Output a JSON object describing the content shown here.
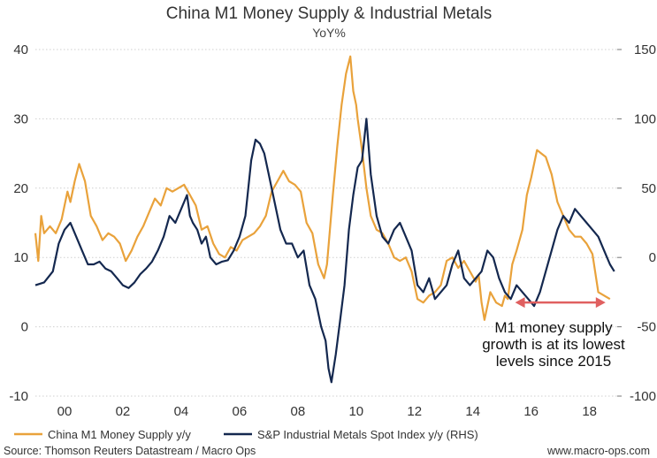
{
  "chart_data": {
    "type": "line",
    "title": "China M1 Money Supply & Industrial Metals",
    "subtitle": "YoY%",
    "x_ticks": [
      "00",
      "02",
      "04",
      "06",
      "08",
      "10",
      "12",
      "14",
      "16",
      "18"
    ],
    "x_tick_years": [
      2000,
      2002,
      2004,
      2006,
      2008,
      2010,
      2012,
      2014,
      2016,
      2018
    ],
    "xlim": [
      1999.0,
      2018.95
    ],
    "left_axis": {
      "ylim": [
        -10,
        40
      ],
      "ticks": [
        "-10",
        "0",
        "10",
        "20",
        "30",
        "40"
      ]
    },
    "right_axis": {
      "ylim": [
        -100,
        150
      ],
      "ticks": [
        "-100",
        "-50",
        "0",
        "50",
        "100",
        "150"
      ]
    },
    "grid": true,
    "legend_position": "bottom",
    "series": [
      {
        "name": "China M1 Money Supply y/y",
        "axis": "left",
        "color": "#E9A23B",
        "x": [
          1999.0,
          1999.1,
          1999.2,
          1999.3,
          1999.5,
          1999.7,
          1999.9,
          2000.1,
          2000.2,
          2000.35,
          2000.5,
          2000.7,
          2000.9,
          2001.1,
          2001.3,
          2001.5,
          2001.7,
          2001.9,
          2002.1,
          2002.3,
          2002.5,
          2002.7,
          2002.9,
          2003.1,
          2003.3,
          2003.5,
          2003.7,
          2003.9,
          2004.1,
          2004.3,
          2004.5,
          2004.7,
          2004.9,
          2005.1,
          2005.3,
          2005.5,
          2005.7,
          2005.9,
          2006.1,
          2006.3,
          2006.5,
          2006.7,
          2006.9,
          2007.1,
          2007.3,
          2007.5,
          2007.7,
          2007.9,
          2008.1,
          2008.3,
          2008.5,
          2008.7,
          2008.9,
          2009.0,
          2009.1,
          2009.2,
          2009.35,
          2009.5,
          2009.65,
          2009.8,
          2009.9,
          2010.0,
          2010.05,
          2010.2,
          2010.35,
          2010.5,
          2010.7,
          2010.9,
          2011.1,
          2011.3,
          2011.5,
          2011.7,
          2011.9,
          2012.1,
          2012.3,
          2012.5,
          2012.7,
          2012.9,
          2013.1,
          2013.3,
          2013.5,
          2013.7,
          2013.9,
          2014.1,
          2014.2,
          2014.3,
          2014.4,
          2014.6,
          2014.8,
          2015.0,
          2015.1,
          2015.2,
          2015.35,
          2015.5,
          2015.7,
          2015.85,
          2016.0,
          2016.1,
          2016.2,
          2016.35,
          2016.5,
          2016.7,
          2016.9,
          2017.1,
          2017.3,
          2017.5,
          2017.7,
          2017.9,
          2018.1,
          2018.3,
          2018.5,
          2018.7
        ],
        "values": [
          13.5,
          9.5,
          16,
          13.5,
          14.5,
          13.5,
          15.5,
          19.5,
          18,
          21,
          23.5,
          21,
          16,
          14.5,
          12.5,
          13.5,
          13,
          12,
          9.5,
          11,
          13,
          14.5,
          16.5,
          18.5,
          17.5,
          20,
          19.5,
          20,
          20.5,
          19,
          17.5,
          14,
          14.5,
          12,
          10.5,
          10,
          11.5,
          11,
          12.5,
          13,
          13.5,
          14.5,
          16,
          19.5,
          21,
          22.5,
          21,
          20.5,
          19.5,
          15,
          13.5,
          9,
          7,
          9,
          14,
          19,
          26,
          32,
          36.5,
          39,
          34,
          32,
          30,
          25.5,
          20,
          16,
          14,
          13.5,
          12,
          10,
          9.5,
          10,
          8,
          4,
          3.5,
          4.5,
          5,
          6,
          9.5,
          10,
          8.5,
          9.5,
          8,
          6.5,
          7.5,
          3.5,
          1,
          5,
          3.5,
          3,
          4.5,
          4,
          9,
          11,
          14,
          19,
          21.5,
          23.5,
          25.5,
          25,
          24.5,
          22,
          18,
          16,
          14,
          13,
          13,
          12,
          10.5,
          5,
          4.5,
          4
        ]
      },
      {
        "name": "S&P Industrial Metals Spot Index y/y (RHS)",
        "axis": "right",
        "color": "#14284F",
        "x": [
          1999.0,
          1999.3,
          1999.6,
          1999.8,
          2000.0,
          2000.2,
          2000.4,
          2000.6,
          2000.8,
          2001.0,
          2001.2,
          2001.4,
          2001.6,
          2001.8,
          2002.0,
          2002.2,
          2002.4,
          2002.6,
          2002.8,
          2003.0,
          2003.2,
          2003.4,
          2003.6,
          2003.8,
          2004.0,
          2004.1,
          2004.2,
          2004.3,
          2004.4,
          2004.55,
          2004.7,
          2004.85,
          2005.0,
          2005.2,
          2005.4,
          2005.6,
          2005.8,
          2006.0,
          2006.2,
          2006.4,
          2006.55,
          2006.7,
          2006.85,
          2007.0,
          2007.2,
          2007.4,
          2007.6,
          2007.8,
          2008.0,
          2008.2,
          2008.4,
          2008.6,
          2008.8,
          2008.95,
          2009.05,
          2009.15,
          2009.3,
          2009.45,
          2009.6,
          2009.75,
          2009.9,
          2010.05,
          2010.2,
          2010.35,
          2010.5,
          2010.7,
          2010.9,
          2011.1,
          2011.3,
          2011.5,
          2011.7,
          2011.9,
          2012.1,
          2012.3,
          2012.5,
          2012.7,
          2012.9,
          2013.1,
          2013.3,
          2013.5,
          2013.7,
          2013.9,
          2014.1,
          2014.3,
          2014.5,
          2014.7,
          2014.9,
          2015.1,
          2015.3,
          2015.5,
          2015.7,
          2015.9,
          2016.1,
          2016.3,
          2016.5,
          2016.7,
          2016.9,
          2017.1,
          2017.3,
          2017.5,
          2017.7,
          2017.9,
          2018.1,
          2018.3,
          2018.5,
          2018.7,
          2018.85
        ],
        "values": [
          -20,
          -18,
          -10,
          10,
          20,
          25,
          15,
          5,
          -5,
          -5,
          -3,
          -8,
          -10,
          -15,
          -20,
          -22,
          -18,
          -12,
          -8,
          -3,
          5,
          15,
          30,
          25,
          35,
          40,
          45,
          30,
          25,
          20,
          10,
          15,
          0,
          -5,
          -3,
          -2,
          5,
          15,
          30,
          70,
          85,
          82,
          75,
          60,
          40,
          20,
          10,
          10,
          0,
          5,
          -20,
          -30,
          -50,
          -60,
          -80,
          -90,
          -70,
          -45,
          -20,
          20,
          45,
          65,
          70,
          100,
          60,
          30,
          15,
          10,
          20,
          25,
          15,
          5,
          -20,
          -25,
          -15,
          -30,
          -25,
          -20,
          -5,
          5,
          -15,
          -20,
          -15,
          -10,
          5,
          0,
          -15,
          -25,
          -30,
          -20,
          -25,
          -30,
          -35,
          -25,
          -10,
          5,
          20,
          30,
          25,
          35,
          30,
          25,
          20,
          15,
          5,
          -5,
          -10
        ]
      }
    ],
    "annotation": {
      "lines": [
        "M1 money supply",
        "growth is at its lowest",
        "levels since 2015"
      ],
      "arrow_color": "#E06060",
      "arrow_from_year": 2015.45,
      "arrow_to_year": 2018.55,
      "arrow_level": 3.5
    },
    "source": "Source: Thomson Reuters Datastream / Macro Ops",
    "website": "www.macro-ops.com"
  }
}
